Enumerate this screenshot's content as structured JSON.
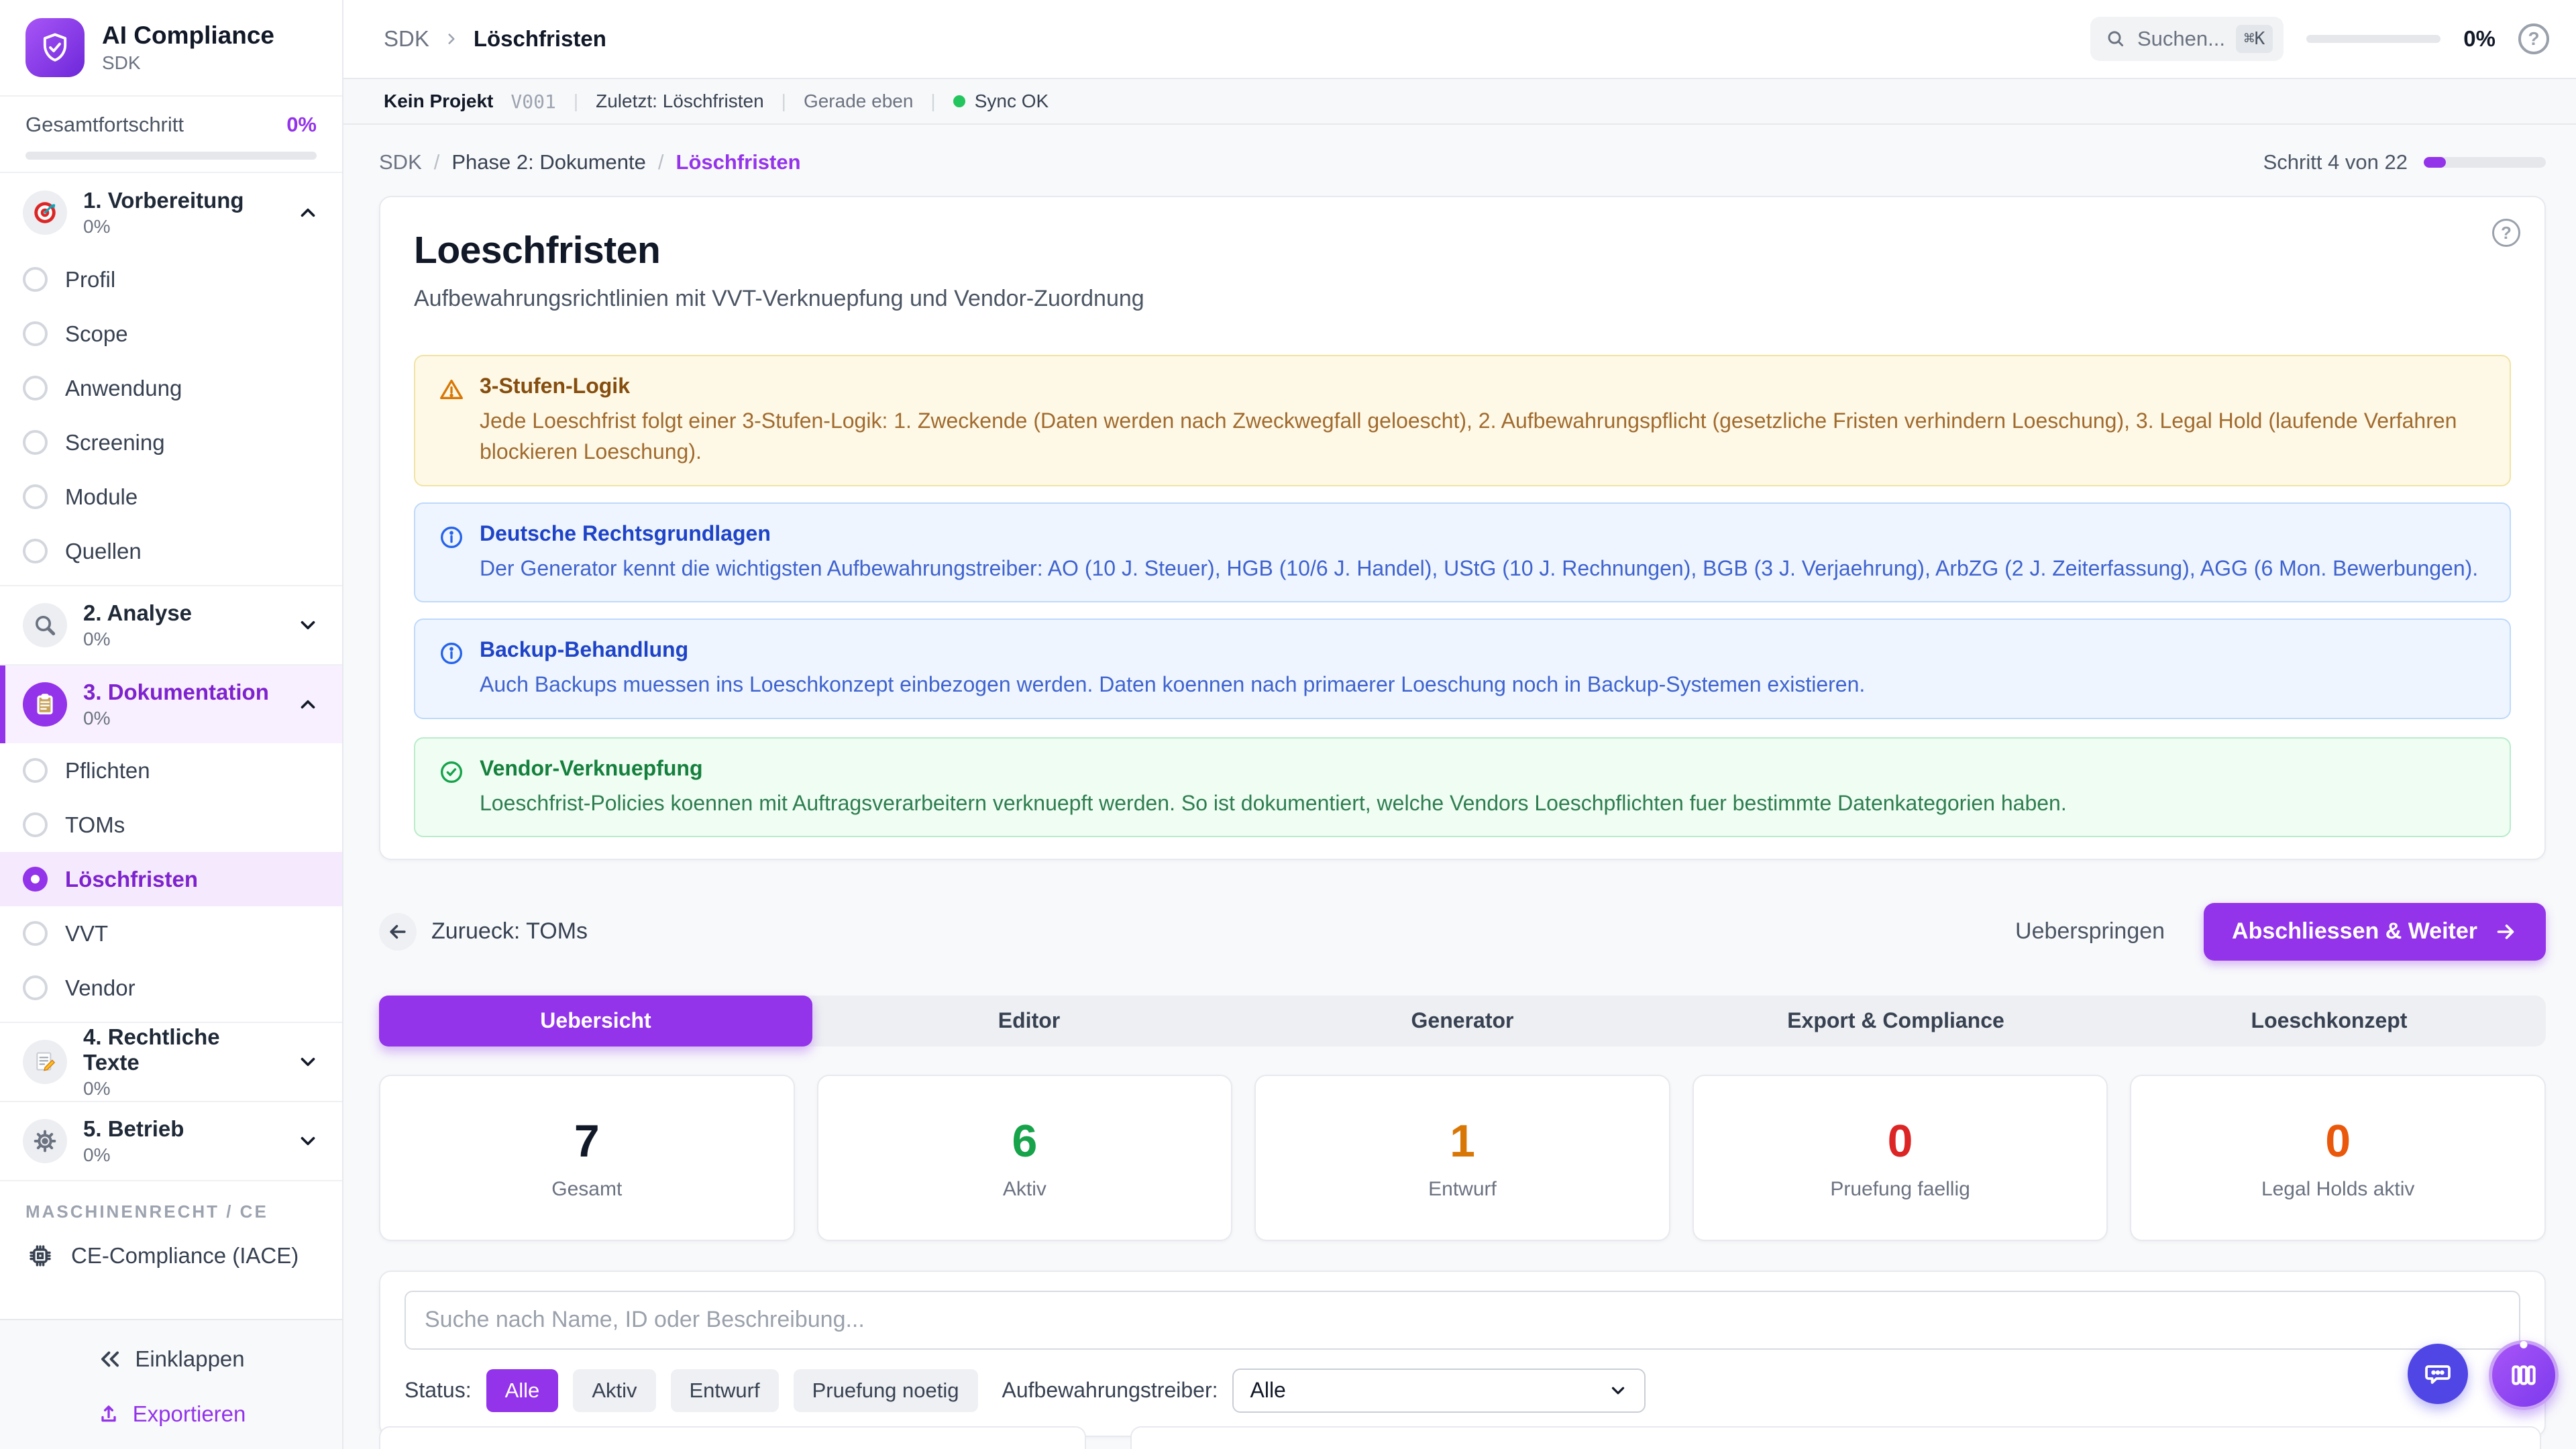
{
  "app": {
    "name": "AI Compliance",
    "subtitle": "SDK"
  },
  "sidebar": {
    "overall_label": "Gesamtfortschritt",
    "overall_value": "0%",
    "overall_percent": 0,
    "sections": [
      {
        "icon": "target-icon",
        "title": "1. Vorbereitung",
        "percent": "0%",
        "expanded": true,
        "items": [
          "Profil",
          "Scope",
          "Anwendung",
          "Screening",
          "Module",
          "Quellen"
        ]
      },
      {
        "icon": "magnifier-icon",
        "title": "2. Analyse",
        "percent": "0%",
        "expanded": false,
        "items": []
      },
      {
        "icon": "clipboard-icon",
        "title": "3. Dokumentation",
        "percent": "0%",
        "expanded": true,
        "active": true,
        "items": [
          "Pflichten",
          "TOMs",
          "Löschfristen",
          "VVT",
          "Vendor"
        ],
        "active_item": "Löschfristen"
      },
      {
        "icon": "memo-icon",
        "title": "4. Rechtliche Texte",
        "percent": "0%",
        "expanded": false,
        "items": []
      },
      {
        "icon": "gear-icon",
        "title": "5. Betrieb",
        "percent": "0%",
        "expanded": false,
        "items": []
      }
    ],
    "group_label": "MASCHINENRECHT / CE",
    "ce_item": "CE-Compliance (IACE)",
    "collapse_label": "Einklappen",
    "export_label": "Exportieren"
  },
  "topbar": {
    "breadcrumb_root": "SDK",
    "breadcrumb_current": "Löschfristen",
    "search_placeholder": "Suchen...",
    "search_shortcut": "⌘K",
    "progress_value": "0%",
    "progress_percent": 0
  },
  "statusbar": {
    "project": "Kein Projekt",
    "version": "V001",
    "last": "Zuletzt: Löschfristen",
    "time": "Gerade eben",
    "sync": "Sync OK"
  },
  "page": {
    "breadcrumb_root": "SDK",
    "breadcrumb_mid": "Phase 2: Dokumente",
    "breadcrumb_current": "Löschfristen",
    "step_label": "Schritt 4 von 22",
    "step_percent": 18
  },
  "main": {
    "title": "Loeschfristen",
    "subtitle": "Aufbewahrungsrichtlinien mit VVT-Verknuepfung und Vendor-Zuordnung",
    "info_boxes": [
      {
        "type": "warning",
        "title": "3-Stufen-Logik",
        "body": "Jede Loeschfrist folgt einer 3-Stufen-Logik: 1. Zweckende (Daten werden nach Zweckwegfall geloescht), 2. Aufbewahrungspflicht (gesetzliche Fristen verhindern Loeschung), 3. Legal Hold (laufende Verfahren blockieren Loeschung)."
      },
      {
        "type": "info",
        "title": "Deutsche Rechtsgrundlagen",
        "body": "Der Generator kennt die wichtigsten Aufbewahrungstreiber: AO (10 J. Steuer), HGB (10/6 J. Handel), UStG (10 J. Rechnungen), BGB (3 J. Verjaehrung), ArbZG (2 J. Zeiterfassung), AGG (6 Mon. Bewerbungen)."
      },
      {
        "type": "info",
        "title": "Backup-Behandlung",
        "body": "Auch Backups muessen ins Loeschkonzept einbezogen werden. Daten koennen nach primaerer Loeschung noch in Backup-Systemen existieren."
      },
      {
        "type": "success",
        "title": "Vendor-Verknuepfung",
        "body": "Loeschfrist-Policies koennen mit Auftragsverarbeitern verknuepft werden. So ist dokumentiert, welche Vendors Loeschpflichten fuer bestimmte Datenkategorien haben."
      }
    ]
  },
  "actions": {
    "back": "Zurueck: TOMs",
    "skip": "Ueberspringen",
    "primary": "Abschliessen & Weiter"
  },
  "tabs": [
    {
      "label": "Uebersicht",
      "active": true
    },
    {
      "label": "Editor",
      "active": false
    },
    {
      "label": "Generator",
      "active": false
    },
    {
      "label": "Export & Compliance",
      "active": false
    },
    {
      "label": "Loeschkonzept",
      "active": false
    }
  ],
  "stats": [
    {
      "value": "7",
      "label": "Gesamt",
      "color": "#111827"
    },
    {
      "value": "6",
      "label": "Aktiv",
      "color": "#16a34a"
    },
    {
      "value": "1",
      "label": "Entwurf",
      "color": "#d97706"
    },
    {
      "value": "0",
      "label": "Pruefung faellig",
      "color": "#dc2626"
    },
    {
      "value": "0",
      "label": "Legal Holds aktiv",
      "color": "#ea580c"
    }
  ],
  "filters": {
    "search_placeholder": "Suche nach Name, ID oder Beschreibung...",
    "status_label": "Status:",
    "status_options": [
      {
        "label": "Alle",
        "active": true
      },
      {
        "label": "Aktiv",
        "active": false
      },
      {
        "label": "Entwurf",
        "active": false
      },
      {
        "label": "Pruefung noetig",
        "active": false
      }
    ],
    "driver_label": "Aufbewahrungstreiber:",
    "driver_value": "Alle"
  },
  "colors": {
    "accent": "#9333ea",
    "sync_ok": "#22c55e",
    "warning": "#d97706",
    "info": "#2563eb",
    "success": "#16a34a"
  }
}
